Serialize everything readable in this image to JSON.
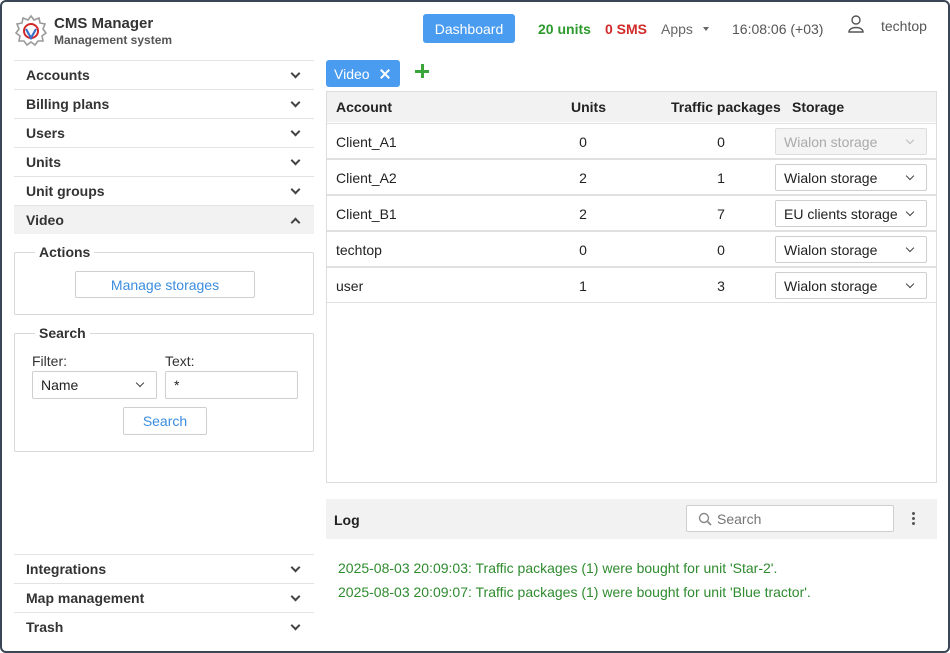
{
  "header": {
    "app_title": "CMS Manager",
    "app_subtitle": "Management system",
    "dashboard_label": "Dashboard",
    "units_count": "20 units",
    "sms_count": "0 SMS",
    "apps_label": "Apps",
    "clock": "16:08:06 (+03)",
    "user_name": "techtop"
  },
  "sidebar": {
    "items": [
      {
        "label": "Accounts"
      },
      {
        "label": "Billing plans"
      },
      {
        "label": "Users"
      },
      {
        "label": "Units"
      },
      {
        "label": "Unit groups"
      },
      {
        "label": "Video"
      }
    ],
    "actions": {
      "legend": "Actions",
      "manage_storages_label": "Manage storages"
    },
    "search": {
      "legend": "Search",
      "filter_label": "Filter:",
      "filter_value": "Name",
      "text_label": "Text:",
      "text_value": "*",
      "search_button": "Search"
    },
    "bottom_items": [
      {
        "label": "Integrations"
      },
      {
        "label": "Map management"
      },
      {
        "label": "Trash"
      }
    ]
  },
  "tabs": {
    "active": "Video"
  },
  "table": {
    "headers": {
      "account": "Account",
      "units": "Units",
      "traffic": "Traffic packages",
      "storage": "Storage"
    },
    "rows": [
      {
        "account": "Client_A1",
        "units": "0",
        "traffic": "0",
        "storage": "Wialon storage",
        "disabled": true
      },
      {
        "account": "Client_A2",
        "units": "2",
        "traffic": "1",
        "storage": "Wialon storage",
        "disabled": false
      },
      {
        "account": "Client_B1",
        "units": "2",
        "traffic": "7",
        "storage": "EU clients storage",
        "disabled": false
      },
      {
        "account": "techtop",
        "units": "0",
        "traffic": "0",
        "storage": "Wialon storage",
        "disabled": false
      },
      {
        "account": "user",
        "units": "1",
        "traffic": "3",
        "storage": "Wialon storage",
        "disabled": false
      }
    ]
  },
  "log": {
    "title": "Log",
    "search_placeholder": "Search",
    "entries": [
      "2025-08-03 20:09:03: Traffic packages (1) were bought for unit 'Star-2'.",
      "2025-08-03 20:09:07: Traffic packages (1) were bought for unit 'Blue tractor'."
    ]
  },
  "colors": {
    "accent": "#4a9cf0",
    "units_green": "#2e9a2e",
    "sms_red": "#d12a2a",
    "log_green": "#2e8b2e"
  }
}
